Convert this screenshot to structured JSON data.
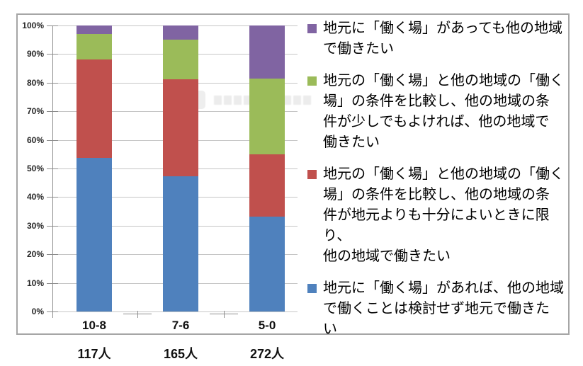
{
  "chart_data": {
    "type": "bar",
    "subtype": "100%-stacked-column",
    "title": "",
    "categories": [
      "10-8",
      "7-6",
      "5-0"
    ],
    "category_counts": [
      "117人",
      "165人",
      "272人"
    ],
    "series": [
      {
        "name": "地元に「働く場」があれば、他の地域で働くことは検討せず地元で働きたい",
        "color": "#4f81bd",
        "values": [
          53.8,
          47.3,
          33.1
        ]
      },
      {
        "name": "地元の「働く場」と他の地域の「働く場」の条件を比較し、他の地域の条件が地元よりも十分によいときに限り、他の地域で働きたい",
        "color": "#c0504d",
        "values": [
          34.4,
          33.9,
          21.9
        ]
      },
      {
        "name": "地元の「働く場」と他の地域の「働く場」の条件を比較し、他の地域の条件が少しでもよければ、他の地域で働きたい",
        "color": "#9bbb59",
        "values": [
          8.8,
          13.9,
          26.5
        ]
      },
      {
        "name": "地元に「働く場」があっても他の地域で働きたい",
        "color": "#8064a2",
        "values": [
          3.0,
          4.9,
          18.5
        ]
      }
    ],
    "y_axis": {
      "min": 0,
      "max": 100,
      "tick_step": 10,
      "tick_labels": [
        "0%",
        "10%",
        "20%",
        "30%",
        "40%",
        "50%",
        "60%",
        "70%",
        "80%",
        "90%",
        "100%"
      ]
    },
    "grid": true,
    "legend_position": "right"
  },
  "legend": {
    "items": [
      {
        "color": "#8064a2",
        "label": "地元に「働く場」があっても他の地域で働きたい",
        "lines": [
          "地元に「働く場」があっても他の地域",
          "で働きたい"
        ]
      },
      {
        "color": "#9bbb59",
        "label": "地元の「働く場」と他の地域の「働く場」の条件を比較し、他の地域の条件が少しでもよければ、他の地域で働きたい",
        "lines": [
          "地元の「働く場」と他の地域の「働く",
          "場」の条件を比較し、他の地域の条",
          "件が少しでもよければ、他の地域で",
          "働きたい"
        ]
      },
      {
        "color": "#c0504d",
        "label": "地元の「働く場」と他の地域の「働く場」の条件を比較し、他の地域の条件が地元よりも十分によいときに限り、他の地域で働きたい",
        "lines": [
          "地元の「働く場」と他の地域の「働く",
          "場」の条件を比較し、他の地域の条",
          "件が地元よりも十分によいときに限り、",
          "他の地域で働きたい"
        ]
      },
      {
        "color": "#4f81bd",
        "label": "地元に「働く場」があれば、他の地域で働くことは検討せず地元で働きたい",
        "lines": [
          "地元に「働く場」があれば、他の地域",
          "で働くことは検討せず地元で働きた",
          "い"
        ]
      }
    ]
  },
  "colors": {
    "grid": "#c6c6c6",
    "axis": "#8c8c8c",
    "frame_border": "#a6a6a6",
    "label_text": "#111111"
  }
}
